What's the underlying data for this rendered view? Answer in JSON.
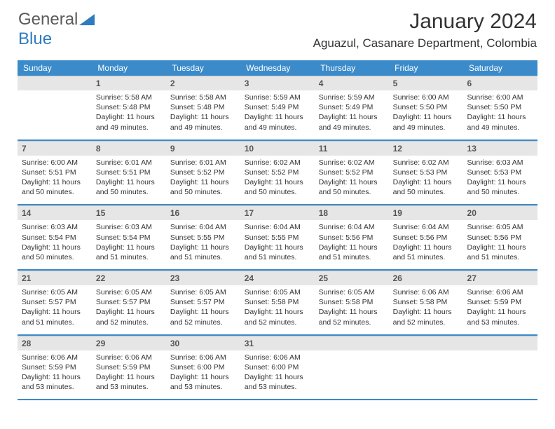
{
  "logo": {
    "part1": "General",
    "part2": "Blue"
  },
  "title": "January 2024",
  "location": "Aguazul, Casanare Department, Colombia",
  "header_bg": "#3b8bca",
  "daynum_bg": "#e6e6e6",
  "weekdays": [
    "Sunday",
    "Monday",
    "Tuesday",
    "Wednesday",
    "Thursday",
    "Friday",
    "Saturday"
  ],
  "weeks": [
    [
      null,
      {
        "n": "1",
        "sr": "5:58 AM",
        "ss": "5:48 PM",
        "dl": "11 hours and 49 minutes."
      },
      {
        "n": "2",
        "sr": "5:58 AM",
        "ss": "5:48 PM",
        "dl": "11 hours and 49 minutes."
      },
      {
        "n": "3",
        "sr": "5:59 AM",
        "ss": "5:49 PM",
        "dl": "11 hours and 49 minutes."
      },
      {
        "n": "4",
        "sr": "5:59 AM",
        "ss": "5:49 PM",
        "dl": "11 hours and 49 minutes."
      },
      {
        "n": "5",
        "sr": "6:00 AM",
        "ss": "5:50 PM",
        "dl": "11 hours and 49 minutes."
      },
      {
        "n": "6",
        "sr": "6:00 AM",
        "ss": "5:50 PM",
        "dl": "11 hours and 49 minutes."
      }
    ],
    [
      {
        "n": "7",
        "sr": "6:00 AM",
        "ss": "5:51 PM",
        "dl": "11 hours and 50 minutes."
      },
      {
        "n": "8",
        "sr": "6:01 AM",
        "ss": "5:51 PM",
        "dl": "11 hours and 50 minutes."
      },
      {
        "n": "9",
        "sr": "6:01 AM",
        "ss": "5:52 PM",
        "dl": "11 hours and 50 minutes."
      },
      {
        "n": "10",
        "sr": "6:02 AM",
        "ss": "5:52 PM",
        "dl": "11 hours and 50 minutes."
      },
      {
        "n": "11",
        "sr": "6:02 AM",
        "ss": "5:52 PM",
        "dl": "11 hours and 50 minutes."
      },
      {
        "n": "12",
        "sr": "6:02 AM",
        "ss": "5:53 PM",
        "dl": "11 hours and 50 minutes."
      },
      {
        "n": "13",
        "sr": "6:03 AM",
        "ss": "5:53 PM",
        "dl": "11 hours and 50 minutes."
      }
    ],
    [
      {
        "n": "14",
        "sr": "6:03 AM",
        "ss": "5:54 PM",
        "dl": "11 hours and 50 minutes."
      },
      {
        "n": "15",
        "sr": "6:03 AM",
        "ss": "5:54 PM",
        "dl": "11 hours and 51 minutes."
      },
      {
        "n": "16",
        "sr": "6:04 AM",
        "ss": "5:55 PM",
        "dl": "11 hours and 51 minutes."
      },
      {
        "n": "17",
        "sr": "6:04 AM",
        "ss": "5:55 PM",
        "dl": "11 hours and 51 minutes."
      },
      {
        "n": "18",
        "sr": "6:04 AM",
        "ss": "5:56 PM",
        "dl": "11 hours and 51 minutes."
      },
      {
        "n": "19",
        "sr": "6:04 AM",
        "ss": "5:56 PM",
        "dl": "11 hours and 51 minutes."
      },
      {
        "n": "20",
        "sr": "6:05 AM",
        "ss": "5:56 PM",
        "dl": "11 hours and 51 minutes."
      }
    ],
    [
      {
        "n": "21",
        "sr": "6:05 AM",
        "ss": "5:57 PM",
        "dl": "11 hours and 51 minutes."
      },
      {
        "n": "22",
        "sr": "6:05 AM",
        "ss": "5:57 PM",
        "dl": "11 hours and 52 minutes."
      },
      {
        "n": "23",
        "sr": "6:05 AM",
        "ss": "5:57 PM",
        "dl": "11 hours and 52 minutes."
      },
      {
        "n": "24",
        "sr": "6:05 AM",
        "ss": "5:58 PM",
        "dl": "11 hours and 52 minutes."
      },
      {
        "n": "25",
        "sr": "6:05 AM",
        "ss": "5:58 PM",
        "dl": "11 hours and 52 minutes."
      },
      {
        "n": "26",
        "sr": "6:06 AM",
        "ss": "5:58 PM",
        "dl": "11 hours and 52 minutes."
      },
      {
        "n": "27",
        "sr": "6:06 AM",
        "ss": "5:59 PM",
        "dl": "11 hours and 53 minutes."
      }
    ],
    [
      {
        "n": "28",
        "sr": "6:06 AM",
        "ss": "5:59 PM",
        "dl": "11 hours and 53 minutes."
      },
      {
        "n": "29",
        "sr": "6:06 AM",
        "ss": "5:59 PM",
        "dl": "11 hours and 53 minutes."
      },
      {
        "n": "30",
        "sr": "6:06 AM",
        "ss": "6:00 PM",
        "dl": "11 hours and 53 minutes."
      },
      {
        "n": "31",
        "sr": "6:06 AM",
        "ss": "6:00 PM",
        "dl": "11 hours and 53 minutes."
      },
      null,
      null,
      null
    ]
  ],
  "labels": {
    "sunrise": "Sunrise: ",
    "sunset": "Sunset: ",
    "daylight": "Daylight: "
  }
}
